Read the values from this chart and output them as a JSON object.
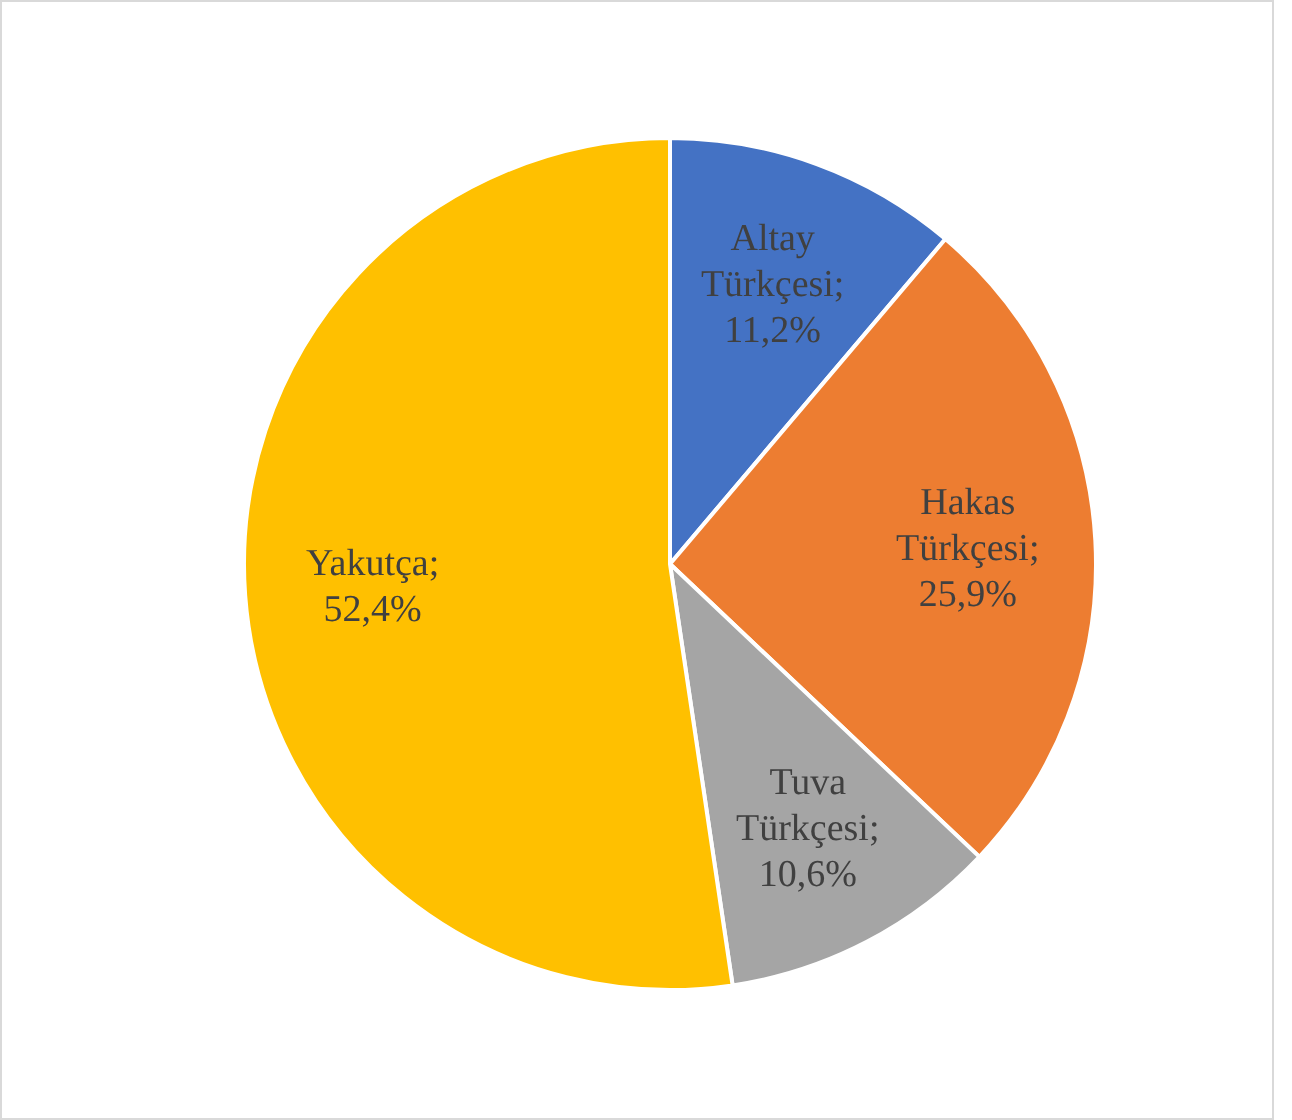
{
  "chart_data": {
    "type": "pie",
    "categories": [
      "Altay Türkçesi",
      "Hakas Türkçesi",
      "Tuva Türkçesi",
      "Yakutça"
    ],
    "values": [
      11.2,
      25.9,
      10.6,
      52.4
    ],
    "colors": [
      "#4472c4",
      "#ed7d31",
      "#a5a5a5",
      "#ffc000"
    ],
    "value_labels": [
      "; 11,2%",
      "; 25,9%",
      "; 10,6%",
      "; 52,4%"
    ],
    "legend": false
  }
}
